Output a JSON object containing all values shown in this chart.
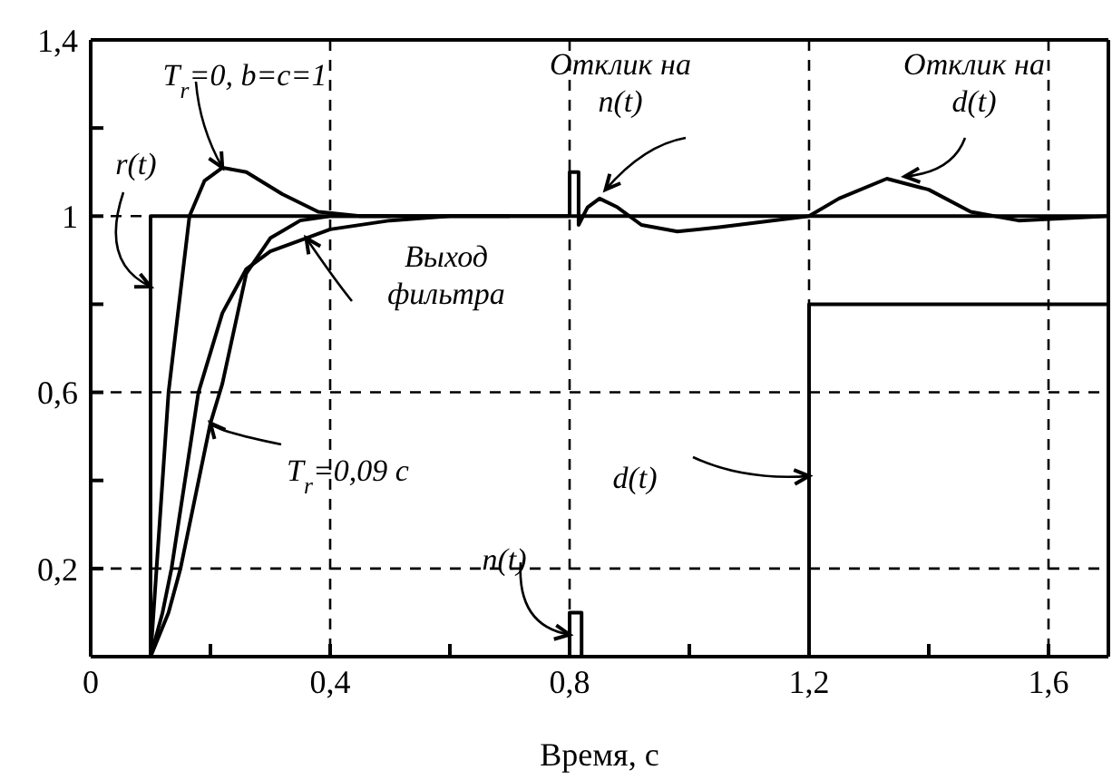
{
  "chart_data": {
    "type": "line",
    "xlabel": "Время, с",
    "xlim": [
      0,
      1.7
    ],
    "ylim": [
      0,
      1.4
    ],
    "xticks": [
      {
        "value": 0,
        "label": "0"
      },
      {
        "value": 0.2,
        "label": null
      },
      {
        "value": 0.4,
        "label": "0,4"
      },
      {
        "value": 0.6,
        "label": null
      },
      {
        "value": 0.8,
        "label": "0,8"
      },
      {
        "value": 1.0,
        "label": null
      },
      {
        "value": 1.2,
        "label": "1,2"
      },
      {
        "value": 1.4,
        "label": null
      },
      {
        "value": 1.6,
        "label": "1,6"
      }
    ],
    "yticks": [
      {
        "value": 0.2,
        "label": "0,2"
      },
      {
        "value": 0.4,
        "label": null
      },
      {
        "value": 0.6,
        "label": "0,6"
      },
      {
        "value": 0.8,
        "label": null
      },
      {
        "value": 1,
        "label": "1"
      },
      {
        "value": 1.2,
        "label": null
      },
      {
        "value": 1.4,
        "label": "1,4"
      }
    ],
    "grid": true,
    "marker": "none",
    "line_style": "solid",
    "series": [
      {
        "color": "#000000",
        "x": [
          0.1,
          0.1,
          1.7
        ],
        "values": [
          0,
          1,
          1
        ]
      },
      {
        "color": "#000000",
        "x": [
          0.8,
          0.8,
          0.82,
          0.82
        ],
        "values": [
          0,
          0.1,
          0.1,
          0
        ]
      },
      {
        "color": "#000000",
        "x": [
          1.2,
          1.2,
          1.7
        ],
        "values": [
          0,
          0.8,
          0.8
        ]
      },
      {
        "color": "#000000",
        "x": [
          0.1,
          0.115,
          0.13,
          0.165,
          0.19,
          0.22,
          0.26,
          0.32,
          0.38,
          0.45,
          0.8,
          0.8,
          0.815,
          0.815,
          0.83,
          0.85,
          0.88,
          0.92,
          0.98,
          1.05,
          1.2,
          1.25,
          1.33,
          1.4,
          1.47,
          1.55,
          1.7
        ],
        "values": [
          0,
          0.3,
          0.6,
          1.0,
          1.08,
          1.11,
          1.1,
          1.05,
          1.01,
          1.0,
          1.0,
          1.1,
          1.1,
          0.98,
          1.02,
          1.04,
          1.02,
          0.98,
          0.965,
          0.975,
          1.0,
          1.04,
          1.085,
          1.06,
          1.01,
          0.99,
          1.0
        ]
      },
      {
        "color": "#000000",
        "x": [
          0.1,
          0.13,
          0.15,
          0.2,
          0.22,
          0.26,
          0.3,
          0.35,
          0.4,
          0.5
        ],
        "values": [
          0,
          0.1,
          0.2,
          0.53,
          0.62,
          0.87,
          0.95,
          0.99,
          1.0,
          1.0
        ]
      },
      {
        "color": "#000000",
        "x": [
          0.1,
          0.12,
          0.135,
          0.18,
          0.22,
          0.26,
          0.3,
          0.36,
          0.4,
          0.5,
          0.6,
          0.7
        ],
        "values": [
          0,
          0.1,
          0.2,
          0.6,
          0.78,
          0.88,
          0.92,
          0.95,
          0.97,
          0.99,
          1.0,
          1.0
        ]
      }
    ],
    "annotations": [
      {
        "text": "T$_{r}$=0, b=c=1",
        "x": 0.22,
        "y": 1.11
      },
      {
        "text": "r(t)",
        "x": 0.1,
        "y": 0.84
      },
      {
        "text": "Выход\nфильтра",
        "x": 0.36,
        "y": 0.95
      },
      {
        "text": "T$_{r}$=0,09 c",
        "x": 0.2,
        "y": 0.53
      },
      {
        "text": "n(t)",
        "x": 0.8,
        "y": 0.05
      },
      {
        "text": "d(t)",
        "x": 1.2,
        "y": 0.41
      },
      {
        "text": "Отклик на\nn(t)",
        "x": 0.86,
        "y": 1.06
      },
      {
        "text": "Отклик на\nd(t)",
        "x": 1.36,
        "y": 1.09
      }
    ]
  }
}
